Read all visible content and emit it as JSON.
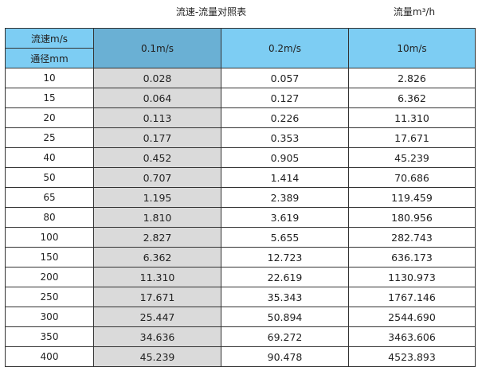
{
  "title": "流速-流量对照表",
  "unit": "流量m³/h",
  "header": {
    "velocity_label": "流速m/s",
    "diameter_label": "通径mm",
    "columns": [
      "0.1m/s",
      "0.2m/s",
      "10m/s"
    ]
  },
  "colors": {
    "header": "#7dcdf3",
    "header_highlight": "#6ab0d4",
    "highlight_column": "#dadada"
  },
  "rows": [
    [
      "10",
      "0.028",
      "0.057",
      "2.826"
    ],
    [
      "15",
      "0.064",
      "0.127",
      "6.362"
    ],
    [
      "20",
      "0.113",
      "0.226",
      "11.310"
    ],
    [
      "25",
      "0.177",
      "0.353",
      "17.671"
    ],
    [
      "40",
      "0.452",
      "0.905",
      "45.239"
    ],
    [
      "50",
      "0.707",
      "1.414",
      "70.686"
    ],
    [
      "65",
      "1.195",
      "2.389",
      "119.459"
    ],
    [
      "80",
      "1.810",
      "3.619",
      "180.956"
    ],
    [
      "100",
      "2.827",
      "5.655",
      "282.743"
    ],
    [
      "150",
      "6.362",
      "12.723",
      "636.173"
    ],
    [
      "200",
      "11.310",
      "22.619",
      "1130.973"
    ],
    [
      "250",
      "17.671",
      "35.343",
      "1767.146"
    ],
    [
      "300",
      "25.447",
      "50.894",
      "2544.690"
    ],
    [
      "350",
      "34.636",
      "69.272",
      "3463.606"
    ],
    [
      "400",
      "45.239",
      "90.478",
      "4523.893"
    ]
  ]
}
